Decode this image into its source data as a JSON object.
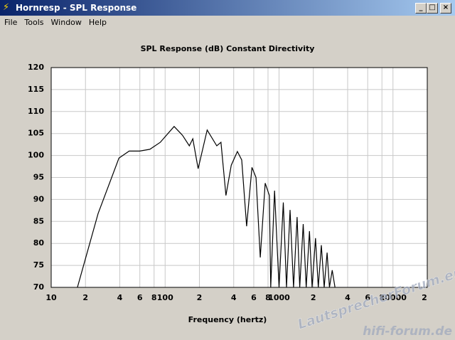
{
  "window": {
    "title": "Hornresp - SPL Response",
    "menu": [
      "File",
      "Tools",
      "Window",
      "Help"
    ]
  },
  "chart_data": {
    "type": "line",
    "title": "SPL Response (dB)   Constant Directivity",
    "x_label": "Frequency (hertz)",
    "xscale": "log",
    "grid": true,
    "color": "#000000",
    "x": [
      17,
      25.8,
      39.3,
      48.4,
      59.8,
      73.5,
      90.6,
      120,
      142,
      163,
      175,
      195,
      234,
      284,
      309,
      342,
      381,
      431,
      470,
      519,
      578,
      628,
      684,
      756,
      822,
      845,
      914,
      1000,
      1090,
      1163,
      1250,
      1340,
      1440,
      1520,
      1630,
      1730,
      1850,
      1950,
      2090,
      2210,
      2350,
      2490,
      2640,
      2770,
      2930,
      3100
    ],
    "values": [
      70,
      86.8,
      99.4,
      101,
      101,
      101.4,
      103,
      106.6,
      104.6,
      102.2,
      103.8,
      97,
      105.8,
      102.2,
      103,
      90.9,
      97.8,
      100.9,
      99,
      83.9,
      97.3,
      95,
      76.8,
      93.7,
      90.9,
      70,
      92,
      70,
      89.3,
      70,
      87.6,
      70,
      86,
      70,
      84.4,
      70,
      82.8,
      70,
      81.2,
      70,
      79.6,
      70,
      77.9,
      70,
      73.9,
      70
    ],
    "xlim": [
      10,
      20000
    ],
    "xticks": [
      10,
      {
        "value": 20,
        "label": "2"
      },
      {
        "value": 40,
        "label": "4"
      },
      {
        "value": 60,
        "label": "6"
      },
      {
        "value": 80,
        "label": "8"
      },
      100,
      {
        "value": 200,
        "label": "2"
      },
      {
        "value": 400,
        "label": "4"
      },
      {
        "value": 600,
        "label": "6"
      },
      {
        "value": 800,
        "label": "8"
      },
      1000,
      {
        "value": 2000,
        "label": "2"
      },
      {
        "value": 4000,
        "label": "4"
      },
      {
        "value": 6000,
        "label": "6"
      },
      {
        "value": 8000,
        "label": "8"
      },
      10000,
      {
        "value": 20000,
        "label": "2"
      }
    ],
    "ylim": [
      70,
      120
    ],
    "yticks": [
      70,
      75,
      80,
      85,
      90,
      95,
      100,
      105,
      110,
      115,
      120
    ]
  },
  "watermark": [
    "LautsprecherForum.eu",
    "hifi-forum.de"
  ]
}
